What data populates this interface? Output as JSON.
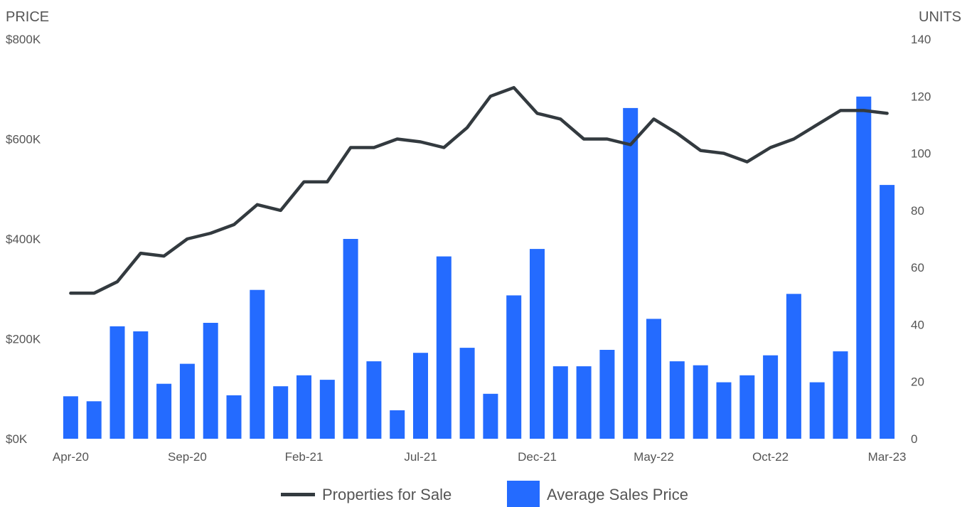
{
  "chart_data": {
    "type": "bar+line",
    "left_axis": {
      "title": "PRICE",
      "ticks": [
        "$0K",
        "$200K",
        "$400K",
        "$600K",
        "$800K"
      ],
      "range": [
        0,
        800000
      ]
    },
    "right_axis": {
      "title": "UNITS",
      "ticks": [
        "0",
        "20",
        "40",
        "60",
        "80",
        "100",
        "120",
        "140"
      ],
      "range": [
        0,
        140
      ]
    },
    "x_tick_labels": [
      "Apr-20",
      "Sep-20",
      "Feb-21",
      "Jul-21",
      "Dec-21",
      "May-22",
      "Oct-22",
      "Mar-23"
    ],
    "x_tick_indices": [
      0,
      5,
      10,
      15,
      20,
      25,
      30,
      35
    ],
    "categories": [
      "Apr-20",
      "May-20",
      "Jun-20",
      "Jul-20",
      "Aug-20",
      "Sep-20",
      "Oct-20",
      "Nov-20",
      "Dec-20",
      "Jan-21",
      "Feb-21",
      "Mar-21",
      "Apr-21",
      "May-21",
      "Jun-21",
      "Jul-21",
      "Aug-21",
      "Sep-21",
      "Oct-21",
      "Nov-21",
      "Dec-21",
      "Jan-22",
      "Feb-22",
      "Mar-22",
      "Apr-22",
      "May-22",
      "Jun-22",
      "Jul-22",
      "Aug-22",
      "Sep-22",
      "Oct-22",
      "Nov-22",
      "Dec-22",
      "Jan-23",
      "Feb-23",
      "Mar-23"
    ],
    "series": [
      {
        "name": "Average Sales Price",
        "kind": "bar",
        "axis": "left",
        "color": "#246bff",
        "values": [
          85000,
          75000,
          225000,
          215000,
          110000,
          150000,
          232000,
          87000,
          298000,
          105000,
          127000,
          118000,
          400000,
          155000,
          57000,
          172000,
          365000,
          182000,
          90000,
          287000,
          380000,
          145000,
          145000,
          178000,
          662000,
          240000,
          155000,
          147000,
          113000,
          127000,
          167000,
          290000,
          113000,
          175000,
          685000,
          508000
        ]
      },
      {
        "name": "Properties for Sale",
        "kind": "line",
        "axis": "right",
        "color": "#333a3f",
        "values": [
          51,
          51,
          55,
          65,
          64,
          70,
          72,
          75,
          82,
          80,
          90,
          90,
          102,
          102,
          105,
          104,
          102,
          109,
          120,
          123,
          114,
          112,
          105,
          105,
          103,
          112,
          107,
          101,
          100,
          97,
          102,
          105,
          110,
          115,
          115,
          114
        ]
      }
    ],
    "legend": [
      {
        "label": "Properties for Sale",
        "kind": "line",
        "color": "#333a3f"
      },
      {
        "label": "Average Sales Price",
        "kind": "bar",
        "color": "#246bff"
      }
    ],
    "legend_position": "bottom",
    "grid": false
  }
}
